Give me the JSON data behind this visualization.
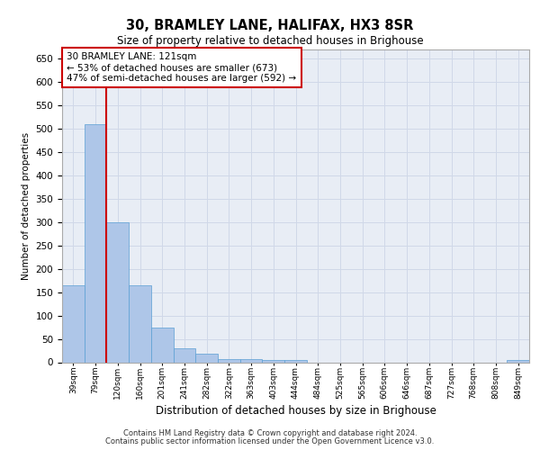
{
  "title1": "30, BRAMLEY LANE, HALIFAX, HX3 8SR",
  "title2": "Size of property relative to detached houses in Brighouse",
  "xlabel": "Distribution of detached houses by size in Brighouse",
  "ylabel": "Number of detached properties",
  "categories": [
    "39sqm",
    "79sqm",
    "120sqm",
    "160sqm",
    "201sqm",
    "241sqm",
    "282sqm",
    "322sqm",
    "363sqm",
    "403sqm",
    "444sqm",
    "484sqm",
    "525sqm",
    "565sqm",
    "606sqm",
    "646sqm",
    "687sqm",
    "727sqm",
    "768sqm",
    "808sqm",
    "849sqm"
  ],
  "values": [
    165,
    510,
    300,
    165,
    75,
    30,
    18,
    7,
    7,
    5,
    5,
    0,
    0,
    0,
    0,
    0,
    0,
    0,
    0,
    0,
    5
  ],
  "bar_color": "#aec6e8",
  "bar_edge_color": "#5a9fd4",
  "vline_x_idx": 1.5,
  "vline_color": "#cc0000",
  "annotation_text": "30 BRAMLEY LANE: 121sqm\n← 53% of detached houses are smaller (673)\n47% of semi-detached houses are larger (592) →",
  "annotation_box_color": "#ffffff",
  "annotation_box_edge": "#cc0000",
  "ylim": [
    0,
    670
  ],
  "yticks": [
    0,
    50,
    100,
    150,
    200,
    250,
    300,
    350,
    400,
    450,
    500,
    550,
    600,
    650
  ],
  "grid_color": "#d0d8e8",
  "background_color": "#e8edf5",
  "footer_line1": "Contains HM Land Registry data © Crown copyright and database right 2024.",
  "footer_line2": "Contains public sector information licensed under the Open Government Licence v3.0."
}
